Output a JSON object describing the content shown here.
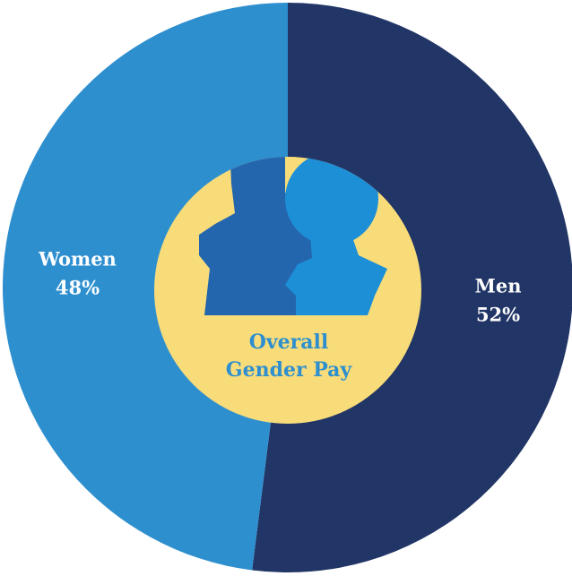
{
  "chart_data": {
    "type": "pie",
    "categories": [
      "Men",
      "Women"
    ],
    "values": [
      52,
      48
    ],
    "value_labels": [
      "52%",
      "48%"
    ],
    "colors": [
      "#213566",
      "#2e8fcf"
    ],
    "center_label": [
      "Overall",
      "Gender Pay"
    ]
  }
}
